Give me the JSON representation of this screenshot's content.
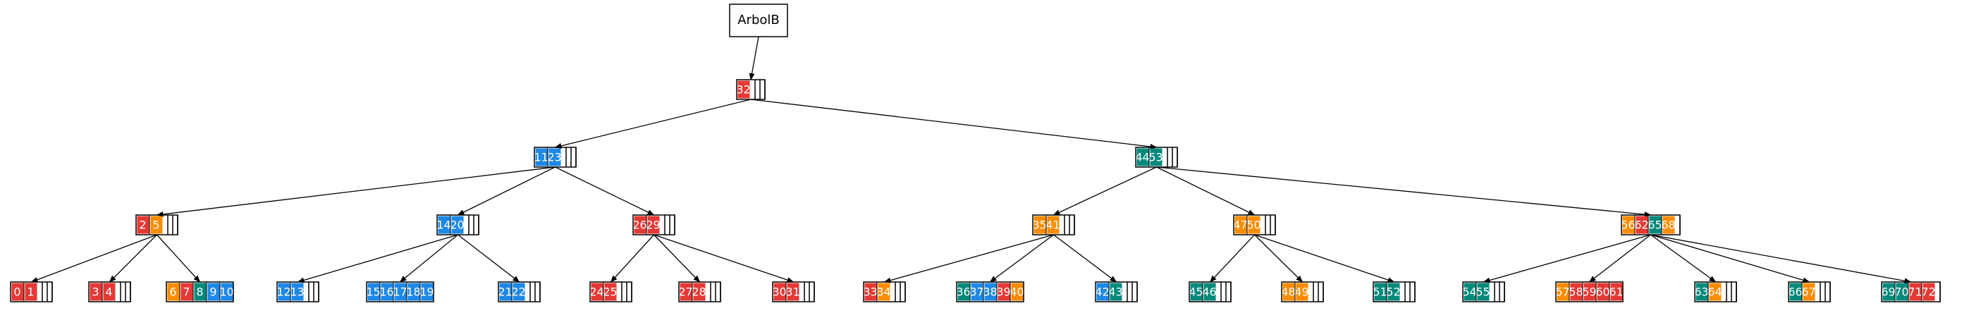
{
  "root_label": "ArbolB",
  "colors": {
    "red": "#e53935",
    "blue": "#1e88e5",
    "teal": "#00897b",
    "orange": "#fb8c00"
  },
  "nodes": [
    {
      "id": "n32",
      "keys": [
        [
          "32",
          "red"
        ]
      ],
      "empty": 3
    },
    {
      "id": "n11",
      "keys": [
        [
          "11",
          "blue"
        ],
        [
          "23",
          "blue"
        ]
      ],
      "empty": 3
    },
    {
      "id": "n44",
      "keys": [
        [
          "44",
          "teal"
        ],
        [
          "53",
          "teal"
        ]
      ],
      "empty": 3
    },
    {
      "id": "n2",
      "keys": [
        [
          "2",
          "red"
        ],
        [
          "5",
          "orange"
        ]
      ],
      "empty": 3
    },
    {
      "id": "n14",
      "keys": [
        [
          "14",
          "blue"
        ],
        [
          "20",
          "blue"
        ]
      ],
      "empty": 3
    },
    {
      "id": "n26",
      "keys": [
        [
          "26",
          "red"
        ],
        [
          "29",
          "red"
        ]
      ],
      "empty": 3
    },
    {
      "id": "n35",
      "keys": [
        [
          "35",
          "orange"
        ],
        [
          "41",
          "orange"
        ]
      ],
      "empty": 3
    },
    {
      "id": "n47",
      "keys": [
        [
          "47",
          "orange"
        ],
        [
          "50",
          "orange"
        ]
      ],
      "empty": 3
    },
    {
      "id": "n56",
      "keys": [
        [
          "56",
          "orange"
        ],
        [
          "62",
          "red"
        ],
        [
          "65",
          "teal"
        ],
        [
          "68",
          "orange"
        ]
      ],
      "empty": 1
    },
    {
      "id": "l0",
      "keys": [
        [
          "0",
          "red"
        ],
        [
          "1",
          "red"
        ]
      ],
      "empty": 3
    },
    {
      "id": "l3",
      "keys": [
        [
          "3",
          "red"
        ],
        [
          "4",
          "red"
        ]
      ],
      "empty": 3
    },
    {
      "id": "l6",
      "keys": [
        [
          "6",
          "orange"
        ],
        [
          "7",
          "red"
        ],
        [
          "8",
          "teal"
        ],
        [
          "9",
          "blue"
        ],
        [
          "10",
          "blue"
        ]
      ],
      "empty": 0
    },
    {
      "id": "l12",
      "keys": [
        [
          "12",
          "blue"
        ],
        [
          "13",
          "blue"
        ]
      ],
      "empty": 3
    },
    {
      "id": "l15",
      "keys": [
        [
          "15",
          "blue"
        ],
        [
          "16",
          "blue"
        ],
        [
          "17",
          "blue"
        ],
        [
          "18",
          "blue"
        ],
        [
          "19",
          "blue"
        ]
      ],
      "empty": 0
    },
    {
      "id": "l21",
      "keys": [
        [
          "21",
          "blue"
        ],
        [
          "22",
          "blue"
        ]
      ],
      "empty": 3
    },
    {
      "id": "l24",
      "keys": [
        [
          "24",
          "red"
        ],
        [
          "25",
          "red"
        ]
      ],
      "empty": 3
    },
    {
      "id": "l27",
      "keys": [
        [
          "27",
          "red"
        ],
        [
          "28",
          "red"
        ]
      ],
      "empty": 3
    },
    {
      "id": "l30",
      "keys": [
        [
          "30",
          "red"
        ],
        [
          "31",
          "red"
        ]
      ],
      "empty": 3
    },
    {
      "id": "l33",
      "keys": [
        [
          "33",
          "red"
        ],
        [
          "34",
          "orange"
        ]
      ],
      "empty": 3
    },
    {
      "id": "l36",
      "keys": [
        [
          "36",
          "teal"
        ],
        [
          "37",
          "blue"
        ],
        [
          "38",
          "blue"
        ],
        [
          "39",
          "red"
        ],
        [
          "40",
          "orange"
        ]
      ],
      "empty": 0
    },
    {
      "id": "l42",
      "keys": [
        [
          "42",
          "blue"
        ],
        [
          "43",
          "teal"
        ]
      ],
      "empty": 3
    },
    {
      "id": "l45",
      "keys": [
        [
          "45",
          "teal"
        ],
        [
          "46",
          "teal"
        ]
      ],
      "empty": 3
    },
    {
      "id": "l48",
      "keys": [
        [
          "48",
          "orange"
        ],
        [
          "49",
          "orange"
        ]
      ],
      "empty": 3
    },
    {
      "id": "l51",
      "keys": [
        [
          "51",
          "teal"
        ],
        [
          "52",
          "teal"
        ]
      ],
      "empty": 3
    },
    {
      "id": "l54",
      "keys": [
        [
          "54",
          "teal"
        ],
        [
          "55",
          "teal"
        ]
      ],
      "empty": 3
    },
    {
      "id": "l57",
      "keys": [
        [
          "57",
          "orange"
        ],
        [
          "58",
          "red"
        ],
        [
          "59",
          "red"
        ],
        [
          "60",
          "red"
        ],
        [
          "61",
          "red"
        ]
      ],
      "empty": 0
    },
    {
      "id": "l63",
      "keys": [
        [
          "63",
          "teal"
        ],
        [
          "64",
          "orange"
        ]
      ],
      "empty": 3
    },
    {
      "id": "l66",
      "keys": [
        [
          "66",
          "teal"
        ],
        [
          "67",
          "orange"
        ]
      ],
      "empty": 3
    },
    {
      "id": "l69",
      "keys": [
        [
          "69",
          "teal"
        ],
        [
          "70",
          "teal"
        ],
        [
          "71",
          "red"
        ],
        [
          "72",
          "red"
        ]
      ],
      "empty": 1
    }
  ],
  "edges": [
    [
      "root",
      "n32"
    ],
    [
      "n32",
      "n11"
    ],
    [
      "n32",
      "n44"
    ],
    [
      "n11",
      "n2"
    ],
    [
      "n11",
      "n14"
    ],
    [
      "n11",
      "n26"
    ],
    [
      "n44",
      "n35"
    ],
    [
      "n44",
      "n47"
    ],
    [
      "n44",
      "n56"
    ],
    [
      "n2",
      "l0"
    ],
    [
      "n2",
      "l3"
    ],
    [
      "n2",
      "l6"
    ],
    [
      "n14",
      "l12"
    ],
    [
      "n14",
      "l15"
    ],
    [
      "n14",
      "l21"
    ],
    [
      "n26",
      "l24"
    ],
    [
      "n26",
      "l27"
    ],
    [
      "n26",
      "l30"
    ],
    [
      "n35",
      "l33"
    ],
    [
      "n35",
      "l36"
    ],
    [
      "n35",
      "l42"
    ],
    [
      "n47",
      "l45"
    ],
    [
      "n47",
      "l48"
    ],
    [
      "n47",
      "l51"
    ],
    [
      "n56",
      "l54"
    ],
    [
      "n56",
      "l57"
    ],
    [
      "n56",
      "l63"
    ],
    [
      "n56",
      "l66"
    ],
    [
      "n56",
      "l69"
    ]
  ]
}
